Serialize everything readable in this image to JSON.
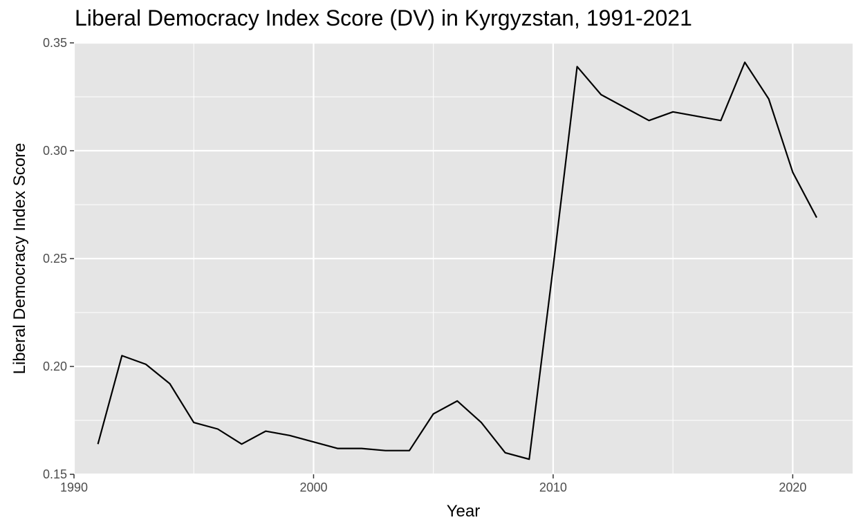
{
  "chart_data": {
    "type": "line",
    "title": "Liberal Democracy Index Score (DV) in Kyrgyzstan, 1991-2021",
    "xlabel": "Year",
    "ylabel": "Liberal Democracy Index Score",
    "xlim": [
      1990,
      2022.5
    ],
    "ylim": [
      0.15,
      0.35
    ],
    "x_ticks": [
      1990,
      2000,
      2010,
      2020
    ],
    "x_tick_labels": [
      "1990",
      "2000",
      "2010",
      "2020"
    ],
    "y_ticks": [
      0.15,
      0.2,
      0.25,
      0.3,
      0.35
    ],
    "y_tick_labels": [
      "0.15",
      "0.20",
      "0.25",
      "0.30",
      "0.35"
    ],
    "grid": true,
    "colors": {
      "panel": "#e5e5e5",
      "grid": "#ffffff",
      "line": "#000000"
    },
    "series": [
      {
        "x": [
          1991,
          1992,
          1993,
          1994,
          1995,
          1996,
          1997,
          1998,
          1999,
          2000,
          2001,
          2002,
          2003,
          2004,
          2005,
          2006,
          2007,
          2008,
          2009,
          2010,
          2011,
          2012,
          2013,
          2014,
          2015,
          2016,
          2017,
          2018,
          2019,
          2020,
          2021
        ],
        "values": [
          0.164,
          0.205,
          0.201,
          0.192,
          0.174,
          0.171,
          0.164,
          0.17,
          0.168,
          0.165,
          0.162,
          0.162,
          0.161,
          0.161,
          0.178,
          0.184,
          0.174,
          0.16,
          0.157,
          0.246,
          0.339,
          0.326,
          0.32,
          0.314,
          0.318,
          0.316,
          0.314,
          0.341,
          0.324,
          0.29,
          0.269
        ]
      }
    ]
  }
}
